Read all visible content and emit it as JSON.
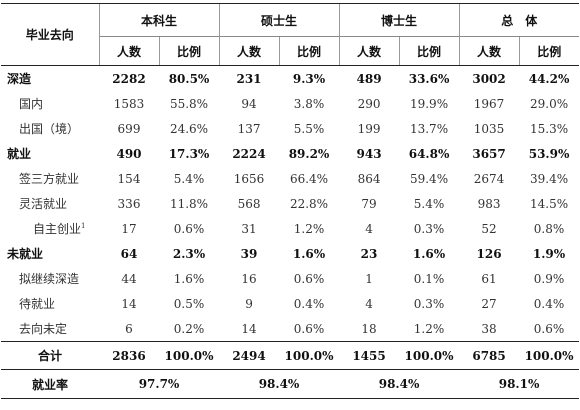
{
  "table": {
    "corner": "毕业去向",
    "groups": [
      "本科生",
      "硕士生",
      "博士生",
      "总　体"
    ],
    "subheaders": [
      "人数",
      "比例",
      "人数",
      "比例",
      "人数",
      "比例",
      "人数",
      "比例"
    ],
    "rows": [
      {
        "label": "深造",
        "level": 0,
        "cells": [
          "2282",
          "80.5%",
          "231",
          "9.3%",
          "489",
          "33.6%",
          "3002",
          "44.2%"
        ]
      },
      {
        "label": "国内",
        "level": 1,
        "cells": [
          "1583",
          "55.8%",
          "94",
          "3.8%",
          "290",
          "19.9%",
          "1967",
          "29.0%"
        ]
      },
      {
        "label": "出国（境）",
        "level": 1,
        "cells": [
          "699",
          "24.6%",
          "137",
          "5.5%",
          "199",
          "13.7%",
          "1035",
          "15.3%"
        ]
      },
      {
        "label": "就业",
        "level": 0,
        "cells": [
          "490",
          "17.3%",
          "2224",
          "89.2%",
          "943",
          "64.8%",
          "3657",
          "53.9%"
        ]
      },
      {
        "label": "签三方就业",
        "level": 1,
        "cells": [
          "154",
          "5.4%",
          "1656",
          "66.4%",
          "864",
          "59.4%",
          "2674",
          "39.4%"
        ]
      },
      {
        "label": "灵活就业",
        "level": 1,
        "cells": [
          "336",
          "11.8%",
          "568",
          "22.8%",
          "79",
          "5.4%",
          "983",
          "14.5%"
        ]
      },
      {
        "label": "自主创业",
        "note": "1",
        "level": 2,
        "cells": [
          "17",
          "0.6%",
          "31",
          "1.2%",
          "4",
          "0.3%",
          "52",
          "0.8%"
        ]
      },
      {
        "label": "未就业",
        "level": 0,
        "cells": [
          "64",
          "2.3%",
          "39",
          "1.6%",
          "23",
          "1.6%",
          "126",
          "1.9%"
        ]
      },
      {
        "label": "拟继续深造",
        "level": 1,
        "cells": [
          "44",
          "1.6%",
          "16",
          "0.6%",
          "1",
          "0.1%",
          "61",
          "0.9%"
        ]
      },
      {
        "label": "待就业",
        "level": 1,
        "cells": [
          "14",
          "0.5%",
          "9",
          "0.4%",
          "4",
          "0.3%",
          "27",
          "0.4%"
        ]
      },
      {
        "label": "去向未定",
        "level": 1,
        "cells": [
          "6",
          "0.2%",
          "14",
          "0.6%",
          "18",
          "1.2%",
          "38",
          "0.6%"
        ]
      }
    ],
    "total": {
      "label": "合计",
      "cells": [
        "2836",
        "100.0%",
        "2494",
        "100.0%",
        "1455",
        "100.0%",
        "6785",
        "100.0%"
      ]
    },
    "rate": {
      "label": "就业率",
      "cells": [
        "97.7%",
        "98.4%",
        "98.4%",
        "98.1%"
      ]
    }
  }
}
